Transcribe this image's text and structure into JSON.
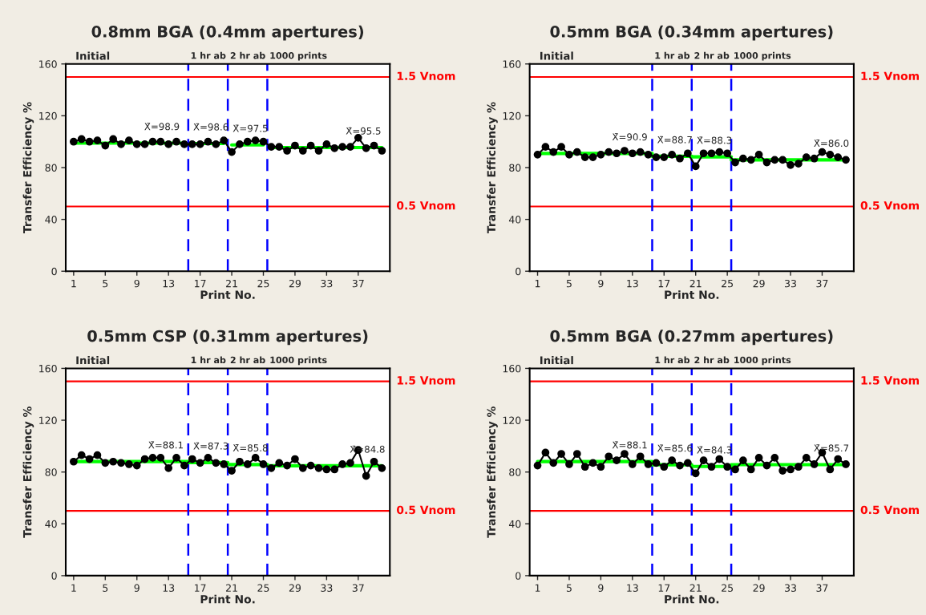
{
  "chart_data": [
    {
      "type": "line",
      "title": "0.8mm BGA (0.4mm apertures)",
      "xlabel": "Print No.",
      "ylabel": "Transfer Efficiency %",
      "xlim": [
        0,
        41
      ],
      "xticks": [
        1,
        5,
        9,
        13,
        17,
        21,
        25,
        29,
        33,
        37
      ],
      "ylim": [
        0,
        160
      ],
      "yticks": [
        0,
        40,
        80,
        120,
        160
      ],
      "grid": false,
      "series": [
        {
          "color": "#00ff00",
          "marker": "none",
          "x": [
            1,
            15
          ],
          "values": [
            98.9,
            98.9
          ]
        },
        {
          "color": "#00ff00",
          "marker": "none",
          "x": [
            16,
            20
          ],
          "values": [
            98.6,
            98.6
          ]
        },
        {
          "color": "#00ff00",
          "marker": "none",
          "x": [
            21,
            25
          ],
          "values": [
            97.5,
            97.5
          ]
        },
        {
          "color": "#00ff00",
          "marker": "none",
          "x": [
            26,
            40
          ],
          "values": [
            95.5,
            95.5
          ]
        },
        {
          "color": "#000000",
          "marker": "circle",
          "x": [
            1,
            2,
            3,
            4,
            5,
            6,
            7,
            8,
            9,
            10,
            11,
            12,
            13,
            14,
            15,
            16,
            17,
            18,
            19,
            20,
            21,
            22,
            23,
            24,
            25,
            26,
            27,
            28,
            29,
            30,
            31,
            32,
            33,
            34,
            35,
            36,
            37,
            38,
            39,
            40
          ],
          "values": [
            100,
            102,
            100,
            101,
            97,
            102,
            98,
            101,
            98,
            98,
            100,
            100,
            98,
            100,
            98,
            98,
            98,
            100,
            98,
            101,
            92,
            98,
            100,
            101,
            100,
            96,
            96,
            93,
            97,
            93,
            97,
            93,
            98,
            95,
            96,
            96,
            103,
            95,
            97,
            93
          ]
        }
      ],
      "ref_lines": [
        {
          "axis": "y",
          "value": 150,
          "label": "1.5 Vnom",
          "color": "#ff0000",
          "line_style": "solid"
        },
        {
          "axis": "y",
          "value": 50,
          "label": "0.5 Vnom",
          "color": "#ff0000",
          "line_style": "solid"
        },
        {
          "axis": "x",
          "value": 15.5,
          "label": "1 hr ab",
          "color": "#0000ff",
          "line_style": "dashed"
        },
        {
          "axis": "x",
          "value": 20.5,
          "label": "2 hr ab",
          "color": "#0000ff",
          "line_style": "dashed"
        },
        {
          "axis": "x",
          "value": 25.5,
          "label": "1000 prints",
          "color": "#0000ff",
          "line_style": "dashed"
        }
      ],
      "annotations": [
        "Initial",
        {
          "text": "X̄=98.9",
          "x": 9.5,
          "y": 98.9
        },
        {
          "text": "X̄=98.6",
          "x": 15.7,
          "y": 98.6
        },
        {
          "text": "X̄=97.5",
          "x": 20.7,
          "y": 97.5
        },
        {
          "text": "X̄=95.5",
          "x": 35,
          "y": 95.5
        }
      ]
    },
    {
      "type": "line",
      "title": "0.5mm BGA (0.34mm apertures)",
      "xlabel": "Print No.",
      "ylabel": "Transfer Efficiency %",
      "xlim": [
        0,
        41
      ],
      "xticks": [
        1,
        5,
        9,
        13,
        17,
        21,
        25,
        29,
        33,
        37
      ],
      "ylim": [
        0,
        160
      ],
      "yticks": [
        0,
        40,
        80,
        120,
        160
      ],
      "grid": false,
      "series": [
        {
          "color": "#00ff00",
          "marker": "none",
          "x": [
            1,
            15.5
          ],
          "values": [
            90.9,
            90.9
          ]
        },
        {
          "color": "#00ff00",
          "marker": "none",
          "x": [
            15.5,
            20.5
          ],
          "values": [
            88.7,
            88.7
          ]
        },
        {
          "color": "#00ff00",
          "marker": "none",
          "x": [
            20.5,
            25.5
          ],
          "values": [
            88.3,
            88.3
          ]
        },
        {
          "color": "#00ff00",
          "marker": "none",
          "x": [
            25.5,
            40
          ],
          "values": [
            86.0,
            86.0
          ]
        },
        {
          "color": "#000000",
          "marker": "circle",
          "x": [
            1,
            2,
            3,
            4,
            5,
            6,
            7,
            8,
            9,
            10,
            11,
            12,
            13,
            14,
            15,
            16,
            17,
            18,
            19,
            20,
            21,
            22,
            23,
            24,
            25,
            26,
            27,
            28,
            29,
            30,
            31,
            32,
            33,
            34,
            35,
            36,
            37,
            38,
            39,
            40
          ],
          "values": [
            90,
            96,
            92,
            96,
            90,
            92,
            88,
            88,
            90,
            92,
            91,
            93,
            91,
            92,
            90,
            88,
            88,
            90,
            87,
            91,
            81,
            91,
            91,
            92,
            91,
            84,
            87,
            86,
            90,
            84,
            86,
            86,
            82,
            83,
            88,
            87,
            92,
            90,
            88,
            86
          ]
        }
      ],
      "ref_lines": [
        {
          "axis": "y",
          "value": 150,
          "label": "1.5 Vnom",
          "color": "#ff0000",
          "line_style": "solid"
        },
        {
          "axis": "y",
          "value": 50,
          "label": "0.5 Vnom",
          "color": "#ff0000",
          "line_style": "solid"
        },
        {
          "axis": "x",
          "value": 15.5,
          "label": "1 hr ab",
          "color": "#0000ff",
          "line_style": "dashed"
        },
        {
          "axis": "x",
          "value": 20.5,
          "label": "2 hr ab",
          "color": "#0000ff",
          "line_style": "dashed"
        },
        {
          "axis": "x",
          "value": 25.5,
          "label": "1000 prints",
          "color": "#0000ff",
          "line_style": "dashed"
        }
      ],
      "annotations": [
        "Initial",
        {
          "text": "X̄=90.9",
          "x": 10,
          "y": 90.9
        },
        {
          "text": "X̄=88.7",
          "x": 15.7,
          "y": 88.7
        },
        {
          "text": "X̄=88.3",
          "x": 20.7,
          "y": 88.3
        },
        {
          "text": "X̄=86.0",
          "x": 35.5,
          "y": 86.0
        }
      ]
    },
    {
      "type": "line",
      "title": "0.5mm CSP (0.31mm apertures)",
      "xlabel": "Print No.",
      "ylabel": "Transfer Efficiency %",
      "xlim": [
        0,
        41
      ],
      "xticks": [
        1,
        5,
        9,
        13,
        17,
        21,
        25,
        29,
        33,
        37
      ],
      "ylim": [
        0,
        160
      ],
      "yticks": [
        0,
        40,
        80,
        120,
        160
      ],
      "grid": false,
      "series": [
        {
          "color": "#00ff00",
          "marker": "none",
          "x": [
            1,
            15.5
          ],
          "values": [
            88.1,
            88.1
          ]
        },
        {
          "color": "#00ff00",
          "marker": "none",
          "x": [
            15.5,
            20.5
          ],
          "values": [
            87.3,
            87.3
          ]
        },
        {
          "color": "#00ff00",
          "marker": "none",
          "x": [
            20.5,
            25.5
          ],
          "values": [
            85.8,
            85.8
          ]
        },
        {
          "color": "#00ff00",
          "marker": "none",
          "x": [
            25.5,
            40
          ],
          "values": [
            84.8,
            84.8
          ]
        },
        {
          "color": "#000000",
          "marker": "circle",
          "x": [
            1,
            2,
            3,
            4,
            5,
            6,
            7,
            8,
            9,
            10,
            11,
            12,
            13,
            14,
            15,
            16,
            17,
            18,
            19,
            20,
            21,
            22,
            23,
            24,
            25,
            26,
            27,
            28,
            29,
            30,
            31,
            32,
            33,
            34,
            35,
            36,
            37,
            38,
            39,
            40
          ],
          "values": [
            88,
            93,
            90,
            93,
            87,
            88,
            87,
            86,
            85,
            90,
            91,
            91,
            83,
            91,
            85,
            90,
            87,
            91,
            87,
            86,
            81,
            88,
            86,
            91,
            86,
            83,
            87,
            85,
            90,
            83,
            85,
            83,
            82,
            82,
            86,
            87,
            97,
            77,
            88,
            83
          ]
        }
      ],
      "ref_lines": [
        {
          "axis": "y",
          "value": 150,
          "label": "1.5 Vnom",
          "color": "#ff0000",
          "line_style": "solid"
        },
        {
          "axis": "y",
          "value": 50,
          "label": "0.5 Vnom",
          "color": "#ff0000",
          "line_style": "solid"
        },
        {
          "axis": "x",
          "value": 15.5,
          "label": "1 hr ab",
          "color": "#0000ff",
          "line_style": "dashed"
        },
        {
          "axis": "x",
          "value": 20.5,
          "label": "2 hr ab",
          "color": "#0000ff",
          "line_style": "dashed"
        },
        {
          "axis": "x",
          "value": 25.5,
          "label": "1000 prints",
          "color": "#0000ff",
          "line_style": "dashed"
        }
      ],
      "annotations": [
        "Initial",
        {
          "text": "X̄=88.1",
          "x": 10,
          "y": 88.1
        },
        {
          "text": "X̄=87.3",
          "x": 15.7,
          "y": 87.3
        },
        {
          "text": "X̄=85.8",
          "x": 20.7,
          "y": 85.8
        },
        {
          "text": "X̄=84.8",
          "x": 35.5,
          "y": 84.8
        }
      ]
    },
    {
      "type": "line",
      "title": "0.5mm BGA (0.27mm apertures)",
      "xlabel": "Print No.",
      "ylabel": "Transfer Efficiency %",
      "xlim": [
        0,
        41
      ],
      "xticks": [
        1,
        5,
        9,
        13,
        17,
        21,
        25,
        29,
        33,
        37
      ],
      "ylim": [
        0,
        160
      ],
      "yticks": [
        0,
        40,
        80,
        120,
        160
      ],
      "grid": false,
      "series": [
        {
          "color": "#00ff00",
          "marker": "none",
          "x": [
            1,
            15.5
          ],
          "values": [
            88.1,
            88.1
          ]
        },
        {
          "color": "#00ff00",
          "marker": "none",
          "x": [
            15.5,
            20.5
          ],
          "values": [
            85.6,
            85.6
          ]
        },
        {
          "color": "#00ff00",
          "marker": "none",
          "x": [
            20.5,
            25.5
          ],
          "values": [
            84.3,
            84.3
          ]
        },
        {
          "color": "#00ff00",
          "marker": "none",
          "x": [
            25.5,
            40
          ],
          "values": [
            85.7,
            85.7
          ]
        },
        {
          "color": "#000000",
          "marker": "circle",
          "x": [
            1,
            2,
            3,
            4,
            5,
            6,
            7,
            8,
            9,
            10,
            11,
            12,
            13,
            14,
            15,
            16,
            17,
            18,
            19,
            20,
            21,
            22,
            23,
            24,
            25,
            26,
            27,
            28,
            29,
            30,
            31,
            32,
            33,
            34,
            35,
            36,
            37,
            38,
            39,
            40
          ],
          "values": [
            85,
            95,
            87,
            94,
            86,
            94,
            84,
            87,
            84,
            92,
            89,
            94,
            86,
            92,
            86,
            87,
            84,
            89,
            85,
            87,
            79,
            89,
            84,
            90,
            84,
            82,
            89,
            82,
            91,
            85,
            91,
            81,
            82,
            84,
            91,
            86,
            95,
            82,
            90,
            86
          ]
        }
      ],
      "ref_lines": [
        {
          "axis": "y",
          "value": 150,
          "label": "1.5 Vnom",
          "color": "#ff0000",
          "line_style": "solid"
        },
        {
          "axis": "y",
          "value": 50,
          "label": "0.5 Vnom",
          "color": "#ff0000",
          "line_style": "solid"
        },
        {
          "axis": "x",
          "value": 15.5,
          "label": "1 hr ab",
          "color": "#0000ff",
          "line_style": "dashed"
        },
        {
          "axis": "x",
          "value": 20.5,
          "label": "2 hr ab",
          "color": "#0000ff",
          "line_style": "dashed"
        },
        {
          "axis": "x",
          "value": 25.5,
          "label": "1000 prints",
          "color": "#0000ff",
          "line_style": "dashed"
        }
      ],
      "annotations": [
        "Initial",
        {
          "text": "X̄=88.1",
          "x": 10,
          "y": 88.1
        },
        {
          "text": "X̄=85.6",
          "x": 15.7,
          "y": 85.6
        },
        {
          "text": "X̄=84.3",
          "x": 20.7,
          "y": 84.3
        },
        {
          "text": "X̄=85.7",
          "x": 35.5,
          "y": 85.7
        }
      ]
    }
  ]
}
